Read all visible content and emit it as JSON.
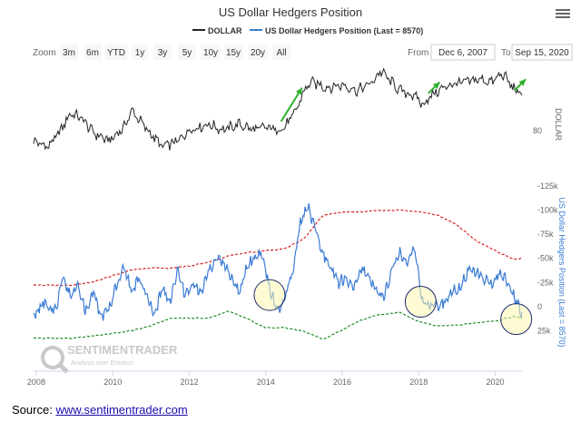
{
  "chart_data": {
    "type": "line",
    "title": "US Dollar Hedgers Position",
    "legend": [
      {
        "name": "DOLLAR",
        "color": "#222222"
      },
      {
        "name": "US Dollar Hedgers Position (Last = 8570)",
        "color": "#3a7bd5"
      }
    ],
    "zoom": {
      "label": "Zoom",
      "buttons": [
        "3m",
        "6m",
        "YTD",
        "1y",
        "3y",
        "5y",
        "10y",
        "15y",
        "20y",
        "All"
      ]
    },
    "range": {
      "from_label": "From",
      "from": "Dec 6, 2007",
      "to_label": "To",
      "to": "Sep 15, 2020"
    },
    "x_ticks": [
      "2008",
      "2010",
      "2012",
      "2014",
      "2016",
      "2018",
      "2020"
    ],
    "x_range": [
      2007.93,
      2020.7
    ],
    "upper_panel": {
      "series": "DOLLAR",
      "axis_label": "DOLLAR",
      "tick_labels": [
        "80"
      ],
      "ylim": [
        72,
        101
      ],
      "x": [
        2007.93,
        2008.3,
        2008.6,
        2008.9,
        2009.2,
        2009.5,
        2009.9,
        2010.3,
        2010.5,
        2010.9,
        2011.3,
        2011.7,
        2012.0,
        2012.5,
        2012.9,
        2013.3,
        2013.7,
        2014.0,
        2014.3,
        2014.5,
        2014.8,
        2015.0,
        2015.2,
        2015.6,
        2016.0,
        2016.4,
        2016.8,
        2017.0,
        2017.5,
        2017.9,
        2018.1,
        2018.4,
        2018.8,
        2019.2,
        2019.6,
        2019.9,
        2020.2,
        2020.35,
        2020.6
      ],
      "values": [
        76,
        74,
        79,
        86,
        84,
        79,
        76,
        81,
        87,
        80,
        74,
        76,
        80,
        82,
        80,
        82,
        80,
        81,
        80,
        81,
        87,
        94,
        97,
        95,
        96,
        94,
        97,
        101,
        94,
        92,
        89,
        93,
        96,
        97,
        98,
        97,
        100,
        97,
        93
      ],
      "annotations": [
        {
          "type": "arrow",
          "x": 2014.4,
          "y": 83,
          "to_x": 2014.95,
          "to_y": 95
        },
        {
          "type": "arrow",
          "x": 2018.25,
          "y": 93,
          "to_x": 2018.55,
          "to_y": 97
        },
        {
          "type": "arrow",
          "x": 2020.5,
          "y": 94,
          "to_x": 2020.8,
          "to_y": 98
        }
      ]
    },
    "lower_panel": {
      "series": "US Dollar Hedgers Position",
      "axis_label": "US Dollar Hedgers Position (Last = 8570)",
      "tick_labels": [
        "-125k",
        "-100k",
        "-75k",
        "-50k",
        "-25k",
        "0",
        "25k"
      ],
      "inverted": true,
      "ylim": [
        -125000,
        35000
      ],
      "hedgers": {
        "x": [
          2007.93,
          2008.2,
          2008.5,
          2008.7,
          2008.9,
          2009.1,
          2009.3,
          2009.5,
          2009.7,
          2009.9,
          2010.1,
          2010.3,
          2010.5,
          2010.7,
          2010.9,
          2011.1,
          2011.3,
          2011.5,
          2011.7,
          2011.9,
          2012.1,
          2012.3,
          2012.5,
          2012.7,
          2012.9,
          2013.1,
          2013.3,
          2013.5,
          2013.7,
          2013.9,
          2014.1,
          2014.3,
          2014.5,
          2014.7,
          2014.9,
          2015.1,
          2015.3,
          2015.5,
          2015.7,
          2015.9,
          2016.1,
          2016.3,
          2016.5,
          2016.7,
          2016.9,
          2017.1,
          2017.3,
          2017.5,
          2017.7,
          2017.9,
          2018.1,
          2018.3,
          2018.5,
          2018.7,
          2018.9,
          2019.1,
          2019.3,
          2019.5,
          2019.7,
          2019.9,
          2020.1,
          2020.3,
          2020.5,
          2020.7
        ],
        "values": [
          10000,
          -5000,
          5000,
          -30000,
          -10000,
          -20000,
          5000,
          -15000,
          10000,
          5000,
          -25000,
          -40000,
          -15000,
          -30000,
          -10000,
          8000,
          -20000,
          -5000,
          -40000,
          -10000,
          -25000,
          -15000,
          -35000,
          -50000,
          -45000,
          -30000,
          -15000,
          -40000,
          -50000,
          -55000,
          -20000,
          5000,
          -10000,
          -35000,
          -85000,
          -105000,
          -80000,
          -55000,
          -40000,
          -25000,
          -30000,
          -20000,
          -40000,
          -30000,
          -15000,
          -10000,
          -40000,
          -55000,
          -45000,
          -60000,
          -5000,
          0,
          -2000,
          -5000,
          -15000,
          -20000,
          -38000,
          -35000,
          -30000,
          -20000,
          -33000,
          -28000,
          -10000,
          8570
        ]
      },
      "upper_band": {
        "x": [
          2007.93,
          2008.5,
          2009.0,
          2009.5,
          2010.0,
          2010.5,
          2011.0,
          2011.5,
          2012.0,
          2012.5,
          2013.0,
          2013.5,
          2014.0,
          2014.5,
          2015.0,
          2015.5,
          2016.0,
          2016.5,
          2017.0,
          2017.5,
          2018.0,
          2018.5,
          2019.0,
          2019.5,
          2020.0,
          2020.5,
          2020.7
        ],
        "values": [
          -22000,
          -22000,
          -22000,
          -26000,
          -32000,
          -38000,
          -40000,
          -40000,
          -42000,
          -46000,
          -52000,
          -56000,
          -58000,
          -60000,
          -70000,
          -95000,
          -98000,
          -98000,
          -100000,
          -100000,
          -98000,
          -95000,
          -85000,
          -68000,
          -58000,
          -49000,
          -50000
        ]
      },
      "lower_band": {
        "x": [
          2007.93,
          2008.5,
          2009.0,
          2009.5,
          2010.0,
          2010.5,
          2011.0,
          2011.5,
          2012.0,
          2012.5,
          2013.0,
          2013.5,
          2014.0,
          2014.5,
          2015.0,
          2015.5,
          2016.0,
          2016.5,
          2017.0,
          2017.5,
          2018.0,
          2018.5,
          2019.0,
          2019.5,
          2020.0,
          2020.5,
          2020.7
        ],
        "values": [
          33000,
          33000,
          33000,
          30000,
          28000,
          25000,
          20000,
          12000,
          12000,
          12000,
          5000,
          12000,
          22000,
          22000,
          26000,
          34000,
          24000,
          14000,
          8000,
          6000,
          16000,
          20000,
          19000,
          17000,
          15000,
          10000,
          12000
        ]
      },
      "highlights": [
        {
          "type": "circle",
          "x": 2014.1,
          "y": -12000
        },
        {
          "type": "circle",
          "x": 2018.05,
          "y": -5000
        },
        {
          "type": "circle",
          "x": 2020.55,
          "y": 13000
        }
      ]
    },
    "watermark": {
      "name": "SENTIMENTRADER",
      "tagline": "Analysis over Emotion"
    }
  },
  "source": {
    "label": "Source:",
    "link": "www.sentimentrader.com"
  }
}
